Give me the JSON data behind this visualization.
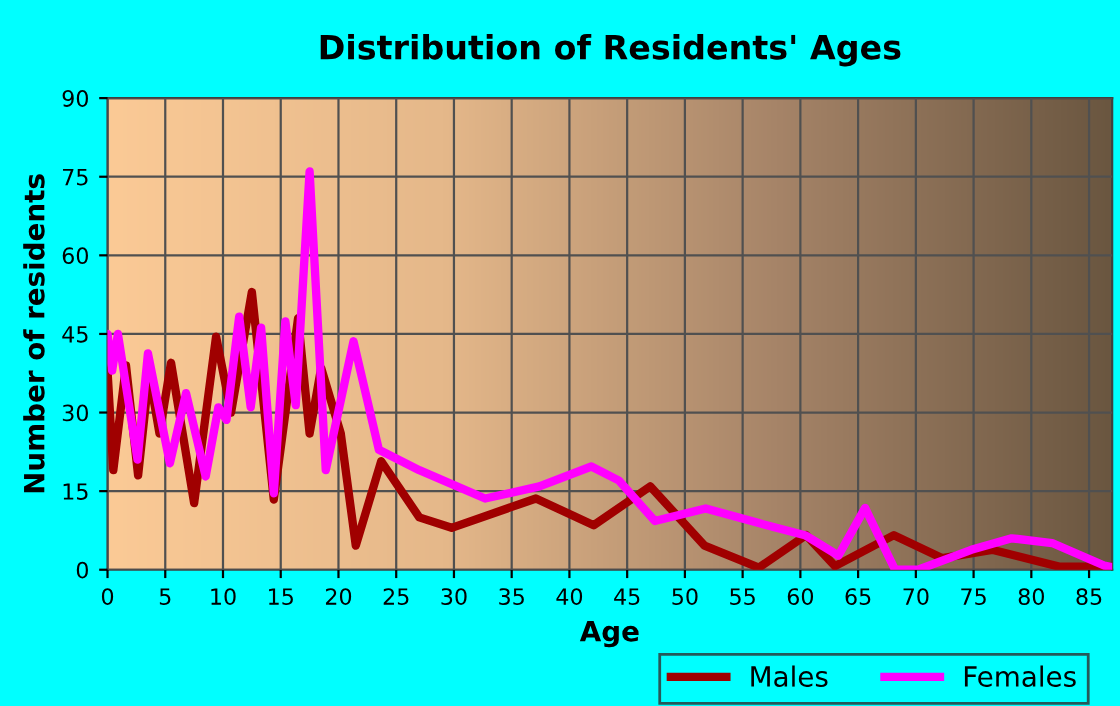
{
  "chart_data": {
    "type": "line",
    "title": "Distribution of Residents' Ages",
    "xlabel": "Age",
    "ylabel": "Number of residents",
    "xlim": [
      0,
      87
    ],
    "xticks": [
      0,
      5,
      10,
      15,
      20,
      25,
      30,
      35,
      40,
      45,
      50,
      55,
      60,
      65,
      70,
      75,
      80,
      85
    ],
    "ylim": [
      0,
      90
    ],
    "yticks": [
      0,
      15,
      30,
      45,
      60,
      75,
      90
    ],
    "grid": true,
    "legend": "bottom right",
    "line_style": "solid",
    "series": [
      {
        "name": "Males",
        "color": "#a00000",
        "x": [
          0,
          0.5,
          1.6,
          2.65,
          3.6,
          4.5,
          5.5,
          7.5,
          9.4,
          10.7,
          12.5,
          14.4,
          16.5,
          17.5,
          18.5,
          20.2,
          21.5,
          23.7,
          27,
          29.8,
          37.1,
          42.1,
          47,
          51.7,
          56.4,
          60.5,
          63,
          68.1,
          72.3,
          76.6,
          82.4,
          87
        ],
        "values": [
          38,
          19,
          39,
          18,
          37.5,
          26,
          39.5,
          12.7,
          44.5,
          30,
          53,
          13.4,
          48,
          26,
          38.5,
          26,
          4.6,
          20.7,
          10,
          8,
          13.6,
          8.5,
          15.9,
          4.6,
          0.4,
          6.6,
          0.7,
          6.6,
          2.2,
          3.8,
          0.6,
          0.6
        ]
      },
      {
        "name": "Females",
        "color": "#ff00ff",
        "x": [
          0,
          0.4,
          0.9,
          2.6,
          3.5,
          5.4,
          6.8,
          8.5,
          9.6,
          10.3,
          11.4,
          12.4,
          13.3,
          14.4,
          15.4,
          16.3,
          17.5,
          18.9,
          21.3,
          23.5,
          27,
          32.7,
          37.4,
          41.9,
          44.3,
          47.4,
          51.8,
          56.4,
          60.4,
          63.3,
          65.6,
          68.2,
          70.2,
          74.8,
          78.3,
          81.8,
          86.3,
          87
        ],
        "values": [
          45,
          38,
          45,
          21,
          41.3,
          20.3,
          33.7,
          17.8,
          31,
          28.6,
          48.3,
          31,
          46.2,
          14.6,
          47.4,
          31.4,
          76,
          19,
          43.6,
          22.9,
          19,
          13.6,
          15.9,
          19.7,
          17,
          9.3,
          11.7,
          8.9,
          6.6,
          2.7,
          11.8,
          0,
          0,
          3.8,
          6,
          5.1,
          0.8,
          0.5
        ]
      }
    ]
  }
}
